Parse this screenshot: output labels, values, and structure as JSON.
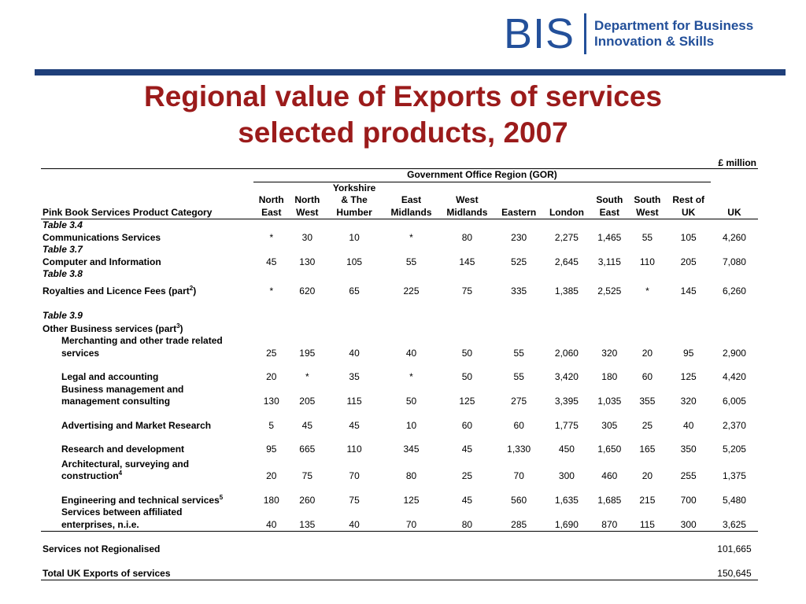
{
  "logo": {
    "short": "BIS",
    "line1": "Department for Business",
    "line2": "Innovation & Skills"
  },
  "title": {
    "line1": "Regional value of Exports of services",
    "line2": "selected products, 2007"
  },
  "unit": "£ million",
  "table": {
    "group_header": "Government Office Region (GOR)",
    "category_header": "Pink Book Services Product Category",
    "columns": [
      [
        "North",
        "East"
      ],
      [
        "North",
        "West"
      ],
      [
        "Yorkshire",
        "& The",
        "Humber"
      ],
      [
        "East",
        "Midlands"
      ],
      [
        "West",
        "Midlands"
      ],
      [
        "Eastern"
      ],
      [
        "London"
      ],
      [
        "South",
        "East"
      ],
      [
        "South",
        "West"
      ],
      [
        "Rest of",
        "UK"
      ],
      [
        "UK"
      ]
    ],
    "refs": {
      "t34": "Table 3.4",
      "t37": "Table 3.7",
      "t38": "Table 3.8",
      "t39": "Table 3.9"
    },
    "rows": {
      "comm": {
        "label": "Communications Services",
        "values": [
          "*",
          "30",
          "10",
          "*",
          "80",
          "230",
          "2,275",
          "1,465",
          "55",
          "105",
          "4,260"
        ]
      },
      "comp": {
        "label": "Computer and Information",
        "values": [
          "45",
          "130",
          "105",
          "55",
          "145",
          "525",
          "2,645",
          "3,115",
          "110",
          "205",
          "7,080"
        ]
      },
      "roy": {
        "label": "Royalties and Licence Fees (part",
        "sup": "2",
        "close": ")",
        "values": [
          "*",
          "620",
          "65",
          "225",
          "75",
          "335",
          "1,385",
          "2,525",
          "*",
          "145",
          "6,260"
        ]
      },
      "obs": {
        "label": "Other Business services (part",
        "sup": "3",
        "close": ")"
      },
      "merch": {
        "label1": "Merchanting and other trade related",
        "label2": "services",
        "values": [
          "25",
          "195",
          "40",
          "40",
          "50",
          "55",
          "2,060",
          "320",
          "20",
          "95",
          "2,900"
        ]
      },
      "legal": {
        "label": "Legal and accounting",
        "values": [
          "20",
          "*",
          "35",
          "*",
          "50",
          "55",
          "3,420",
          "180",
          "60",
          "125",
          "4,420"
        ]
      },
      "bmc": {
        "label1": "Business management and",
        "label2": "management consulting",
        "values": [
          "130",
          "205",
          "115",
          "50",
          "125",
          "275",
          "3,395",
          "1,035",
          "355",
          "320",
          "6,005"
        ]
      },
      "adv": {
        "label": "Advertising and Market Research",
        "values": [
          "5",
          "45",
          "45",
          "10",
          "60",
          "60",
          "1,775",
          "305",
          "25",
          "40",
          "2,370"
        ]
      },
      "rnd": {
        "label": "Research and development",
        "values": [
          "95",
          "665",
          "110",
          "345",
          "45",
          "1,330",
          "450",
          "1,650",
          "165",
          "350",
          "5,205"
        ]
      },
      "arch": {
        "label1": "Architectural, surveying and",
        "label2": "construction",
        "sup": "4",
        "values": [
          "20",
          "75",
          "70",
          "80",
          "25",
          "70",
          "300",
          "460",
          "20",
          "255",
          "1,375"
        ]
      },
      "eng": {
        "label": "Engineering and technical services",
        "sup": "5",
        "values": [
          "180",
          "260",
          "75",
          "125",
          "45",
          "560",
          "1,635",
          "1,685",
          "215",
          "700",
          "5,480"
        ]
      },
      "aff": {
        "label1": "Services between affiliated",
        "label2": "enterprises, n.i.e.",
        "values": [
          "40",
          "135",
          "40",
          "70",
          "80",
          "285",
          "1,690",
          "870",
          "115",
          "300",
          "3,625"
        ]
      },
      "notreg": {
        "label": "Services not Regionalised",
        "uk": "101,665"
      },
      "total": {
        "label": "Total UK Exports of services",
        "uk": "150,645"
      }
    }
  }
}
